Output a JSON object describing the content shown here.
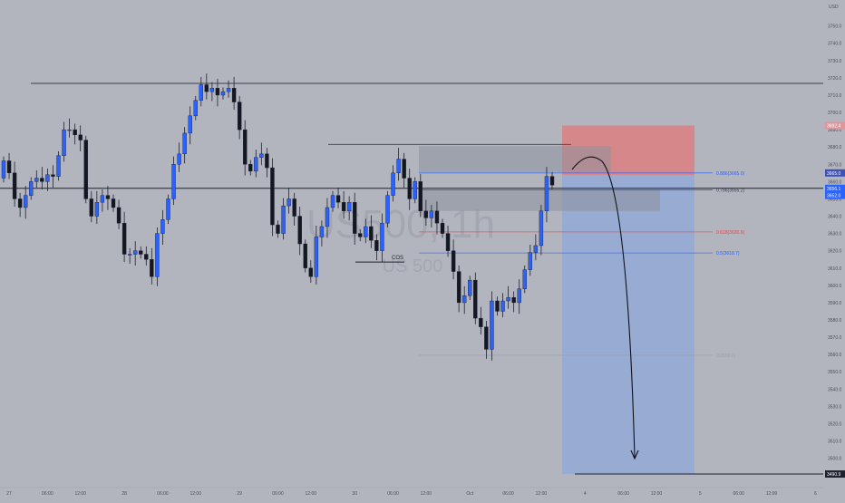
{
  "chart_data": {
    "type": "candlestick",
    "currency": "USD",
    "watermark_symbol": "US500, 1h",
    "watermark_name": "US 500",
    "y_axis": {
      "range": [
        3482,
        3765
      ],
      "ticks": [
        "3750.0",
        "3740.0",
        "3730.0",
        "3720.0",
        "3710.0",
        "3700.0",
        "3690.0",
        "3680.0",
        "3670.0",
        "3660.0",
        "3650.0",
        "3640.0",
        "3630.0",
        "3620.0",
        "3610.0",
        "3600.0",
        "3590.0",
        "3580.0",
        "3570.0",
        "3560.0",
        "3550.0",
        "3540.0",
        "3530.0",
        "3520.0",
        "3510.0",
        "3500.0",
        "3490.0"
      ]
    },
    "x_axis": {
      "ticks": [
        {
          "label": "27",
          "bar": 1
        },
        {
          "label": "06:00",
          "bar": 8
        },
        {
          "label": "12:00",
          "bar": 14
        },
        {
          "label": "28",
          "bar": 22
        },
        {
          "label": "06:00",
          "bar": 29
        },
        {
          "label": "12:00",
          "bar": 35
        },
        {
          "label": "29",
          "bar": 43
        },
        {
          "label": "06:00",
          "bar": 50
        },
        {
          "label": "12:00",
          "bar": 56
        },
        {
          "label": "30",
          "bar": 64
        },
        {
          "label": "06:00",
          "bar": 71
        },
        {
          "label": "12:00",
          "bar": 77
        },
        {
          "label": "Oct",
          "bar": 85
        },
        {
          "label": "06:00",
          "bar": 92
        },
        {
          "label": "12:00",
          "bar": 98
        },
        {
          "label": "4",
          "bar": 106
        },
        {
          "label": "06:00",
          "bar": 113
        },
        {
          "label": "12:00",
          "bar": 119
        },
        {
          "label": "5",
          "bar": 127
        },
        {
          "label": "06:00",
          "bar": 134
        },
        {
          "label": "12:00",
          "bar": 140
        },
        {
          "label": "6",
          "bar": 148
        }
      ]
    },
    "closes": [
      3672,
      3665,
      3650,
      3645,
      3652,
      3660,
      3662,
      3660,
      3664,
      3663,
      3675,
      3690,
      3690,
      3687,
      3684,
      3650,
      3640,
      3648,
      3652,
      3650,
      3645,
      3636,
      3618,
      3618,
      3620,
      3618,
      3615,
      3605,
      3630,
      3638,
      3650,
      3670,
      3676,
      3688,
      3698,
      3707,
      3716,
      3712,
      3714,
      3710,
      3712,
      3714,
      3706,
      3690,
      3670,
      3666,
      3674,
      3676,
      3668,
      3635,
      3630,
      3646,
      3650,
      3640,
      3624,
      3610,
      3605,
      3628,
      3634,
      3645,
      3652,
      3648,
      3643,
      3648,
      3630,
      3628,
      3634,
      3626,
      3620,
      3636,
      3652,
      3665,
      3673,
      3662,
      3650,
      3660,
      3643,
      3639,
      3643,
      3636,
      3630,
      3620,
      3608,
      3590,
      3594,
      3603,
      3581,
      3576,
      3563,
      3591,
      3585,
      3591,
      3593,
      3590,
      3598,
      3609,
      3619,
      3623,
      3643,
      3663,
      3658
    ],
    "horizontal_lines": [
      {
        "price": 3716.8
      },
      {
        "price": 3656.1
      },
      {
        "price": 3490.9
      }
    ],
    "annotations": [
      {
        "label": "COS",
        "price": 3613.5
      }
    ],
    "fib_levels": [
      {
        "label": "0.886(3665.0)",
        "price": 3665.0,
        "color": "#2962ff"
      },
      {
        "label": "0.786(3655.2)",
        "price": 3655.2,
        "color": "#3a3f50"
      },
      {
        "label": "0.618(3630.9)",
        "price": 3630.9,
        "color": "#e0484e"
      },
      {
        "label": "0.5(3618.7)",
        "price": 3618.7,
        "color": "#2962ff"
      },
      {
        "label": "0(3559.6)",
        "price": 3559.6,
        "color": "#9a9fab"
      }
    ],
    "position": {
      "entry": 3663.8,
      "stop": 3692.4,
      "target": 3490.9
    },
    "price_labels": [
      {
        "text": "3692.4",
        "price": 3692.4,
        "bg": "#e0969b",
        "fg": "#ffffff"
      },
      {
        "text": "3665.0",
        "price": 3665.0,
        "bg": "#3f51b5",
        "fg": "#ffffff"
      },
      {
        "text": "3656.1",
        "price": 3656.1,
        "bg": "#2962ff",
        "fg": "#ffffff"
      },
      {
        "text": "3652.0",
        "price": 3652.0,
        "bg": "#2962ff",
        "fg": "#ffffff"
      },
      {
        "text": "3490.9",
        "price": 3490.9,
        "bg": "#1e2230",
        "fg": "#ffffff"
      }
    ],
    "colors": {
      "background": "#b2b5be",
      "up": "#2962ff",
      "down": "#131722",
      "stop_zone": "#e57373",
      "target_zone": "#8fa8d8",
      "axis_text": "#4a4f5a"
    }
  }
}
